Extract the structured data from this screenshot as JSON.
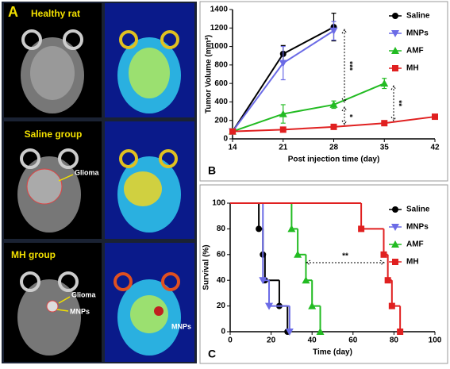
{
  "panel_a": {
    "label": "A",
    "rows": [
      {
        "title": "Healthy rat"
      },
      {
        "title": "Saline group",
        "callouts": [
          "Glioma"
        ]
      },
      {
        "title": "MH group",
        "callouts": [
          "Glioma",
          "MNPs",
          "MNPs"
        ]
      }
    ]
  },
  "chart_data": [
    {
      "type": "line",
      "panel": "B",
      "x_label": "Post injection time (day)",
      "y_label": "Tumor Volume (mm³)",
      "x": [
        14,
        21,
        28,
        35,
        42
      ],
      "xlim": [
        14,
        42
      ],
      "xticks": [
        14,
        21,
        28,
        35,
        42
      ],
      "ylim": [
        0,
        1400
      ],
      "yticks": [
        0,
        200,
        400,
        600,
        800,
        1000,
        1200,
        1400
      ],
      "legend": "top-right",
      "series": [
        {
          "name": "Saline",
          "color": "#000000",
          "marker": "circle",
          "values": [
            80,
            920,
            1210,
            null,
            null
          ],
          "errors": [
            10,
            90,
            150,
            null,
            null
          ]
        },
        {
          "name": "MNPs",
          "color": "#6b6be6",
          "marker": "triangle-down",
          "values": [
            80,
            820,
            1170,
            null,
            null
          ],
          "errors": [
            10,
            180,
            100,
            null,
            null
          ]
        },
        {
          "name": "AMF",
          "color": "#22bb22",
          "marker": "triangle-up",
          "values": [
            80,
            270,
            370,
            600,
            null
          ],
          "errors": [
            10,
            100,
            40,
            55,
            null
          ]
        },
        {
          "name": "MH",
          "color": "#e02020",
          "marker": "square",
          "values": [
            80,
            100,
            130,
            170,
            240
          ],
          "errors": [
            10,
            20,
            20,
            20,
            25
          ]
        }
      ],
      "annotations": [
        "***",
        "*",
        "**"
      ]
    },
    {
      "type": "step",
      "panel": "C",
      "x_label": "Time (day)",
      "y_label": "Survival (%)",
      "xlim": [
        0,
        100
      ],
      "xticks": [
        0,
        20,
        40,
        60,
        80,
        100
      ],
      "ylim": [
        0,
        100
      ],
      "yticks": [
        0,
        20,
        40,
        60,
        80,
        100
      ],
      "legend": "top-right",
      "series": [
        {
          "name": "Saline",
          "color": "#000000",
          "marker": "circle",
          "x": [
            0,
            14,
            16,
            17,
            24,
            28
          ],
          "values": [
            100,
            80,
            60,
            40,
            20,
            0
          ]
        },
        {
          "name": "MNPs",
          "color": "#6b6be6",
          "marker": "triangle-down",
          "x": [
            0,
            16,
            19,
            29
          ],
          "values": [
            100,
            40,
            20,
            0
          ]
        },
        {
          "name": "AMF",
          "color": "#22bb22",
          "marker": "triangle-up",
          "x": [
            0,
            30,
            33,
            37,
            40,
            44
          ],
          "values": [
            100,
            80,
            60,
            40,
            20,
            0
          ]
        },
        {
          "name": "MH",
          "color": "#e02020",
          "marker": "square",
          "x": [
            0,
            64,
            75,
            77,
            79,
            83
          ],
          "values": [
            100,
            80,
            60,
            40,
            20,
            0
          ]
        }
      ],
      "annotations": [
        "**"
      ]
    }
  ]
}
